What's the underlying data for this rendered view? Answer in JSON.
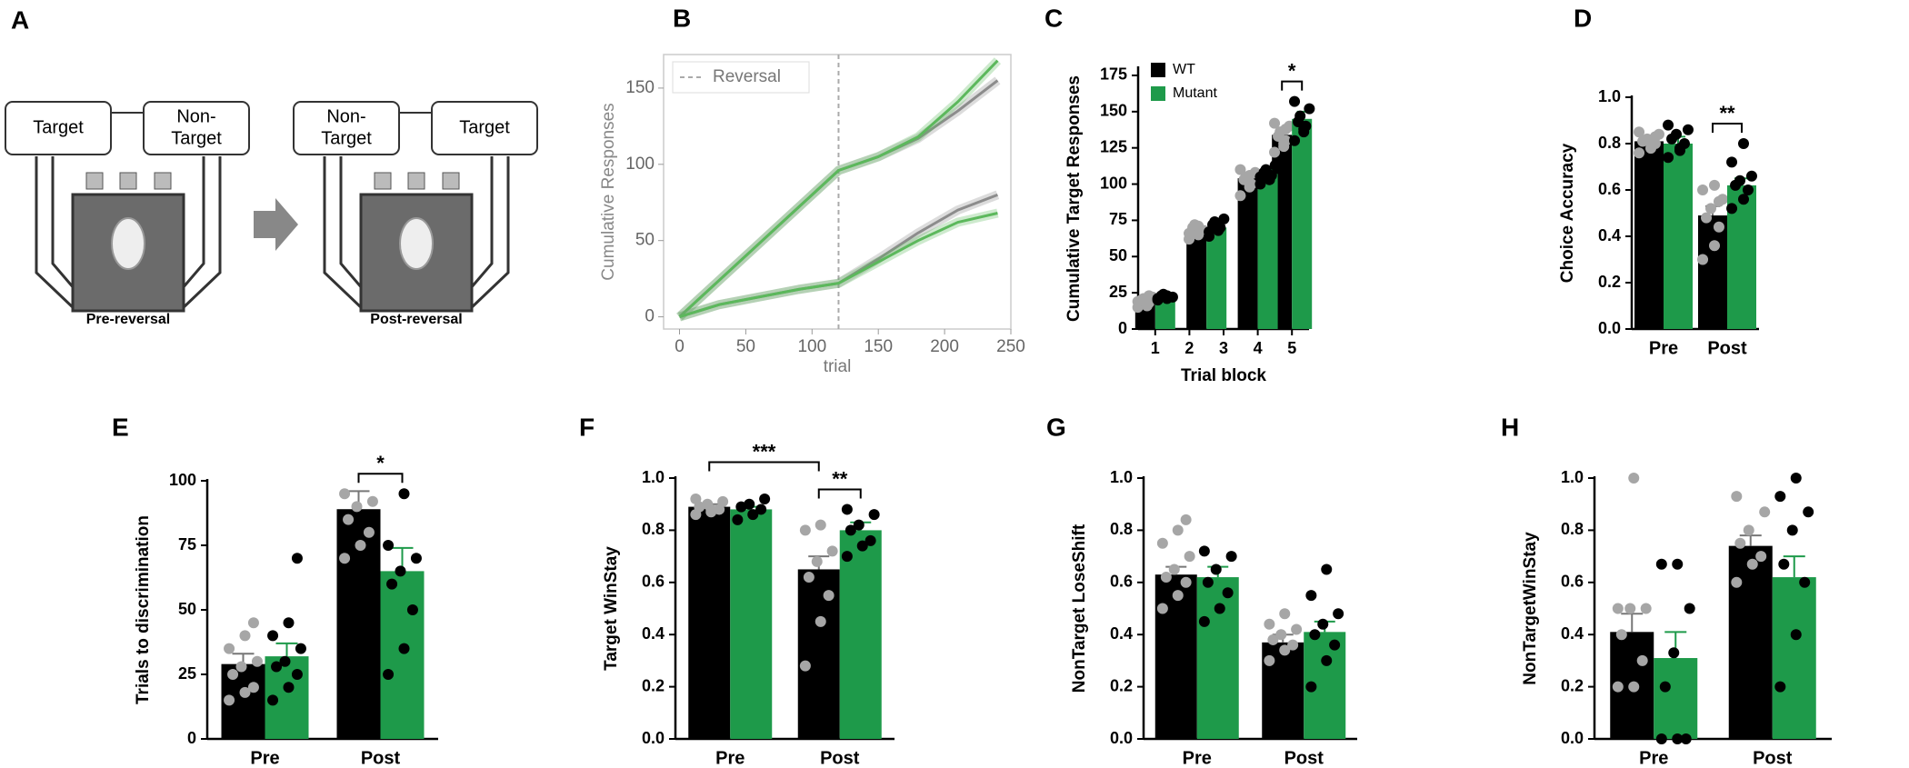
{
  "diagram": {
    "panel": "A",
    "pre": {
      "left": [
        "Target"
      ],
      "right": [
        "Non-",
        "Target"
      ],
      "caption": "Pre-reversal"
    },
    "post": {
      "left": [
        "Non-",
        "Target"
      ],
      "right": [
        "Target"
      ],
      "caption": "Post-reversal"
    }
  },
  "chart_data": [
    {
      "type": "line",
      "panel": "B",
      "xlabel": "trial",
      "ylabel": "Cumulative Responses",
      "x": [
        0,
        30,
        60,
        90,
        120,
        150,
        180,
        210,
        240
      ],
      "series": [
        {
          "color": "#8c8c8c",
          "values": [
            0,
            24,
            48,
            72,
            96,
            105,
            117,
            135,
            155
          ]
        },
        {
          "color": "#5cb85c",
          "values": [
            0,
            24,
            48,
            72,
            96,
            105,
            118,
            141,
            168
          ]
        },
        {
          "color": "#8c8c8c",
          "values": [
            0,
            8,
            13,
            18,
            22,
            38,
            55,
            70,
            80
          ]
        },
        {
          "color": "#5cb85c",
          "values": [
            0,
            8,
            13,
            18,
            22,
            36,
            50,
            62,
            68
          ]
        }
      ],
      "vline": {
        "x": 120,
        "label": "Reversal"
      },
      "xlim": [
        -12,
        250
      ],
      "xticks": [
        0,
        50,
        100,
        150,
        200,
        250
      ],
      "ylim": [
        -8,
        172
      ],
      "yticks": [
        0,
        50,
        100,
        150
      ]
    },
    {
      "type": "bar",
      "panel": "C",
      "xlabel": "Trial block",
      "ylabel": "Cumulative Target Responses",
      "x": [
        1,
        2.5,
        4,
        5
      ],
      "xlim": [
        0.5,
        5.5
      ],
      "xticks": [
        1,
        2,
        3,
        4,
        5
      ],
      "ylim": [
        0,
        180
      ],
      "yticks": [
        0,
        25,
        50,
        75,
        100,
        125,
        150,
        175
      ],
      "legend": "upper left",
      "series": [
        {
          "name": "WT",
          "color": "#000000",
          "point_color": "#a6a6a6",
          "values": [
            19,
            68,
            104,
            134
          ],
          "errors": [
            1,
            2,
            3,
            4
          ],
          "points": [
            [
              15,
              17,
              18,
              20,
              21,
              22,
              19,
              16,
              23
            ],
            [
              62,
              65,
              67,
              70,
              72,
              68,
              66,
              71
            ],
            [
              92,
              98,
              100,
              103,
              105,
              108,
              110,
              106
            ],
            [
              122,
              126,
              130,
              133,
              136,
              140,
              142,
              128,
              138
            ]
          ]
        },
        {
          "name": "Mutant",
          "color": "#1e9a4a",
          "point_color": "#000000",
          "values": [
            22,
            70,
            107,
            145
          ],
          "errors": [
            1,
            2,
            3,
            5
          ],
          "points": [
            [
              20,
              21,
              22,
              23,
              24,
              22,
              21,
              23
            ],
            [
              64,
              68,
              70,
              72,
              74,
              76,
              67
            ],
            [
              100,
              103,
              106,
              108,
              110,
              113,
              105
            ],
            [
              130,
              136,
              140,
              143,
              147,
              152,
              157,
              138
            ]
          ]
        }
      ],
      "significance": [
        {
          "text": "*",
          "from": [
            3,
            0
          ],
          "to": [
            3,
            1
          ]
        }
      ]
    },
    {
      "type": "bar",
      "panel": "D",
      "ylabel": "Choice Accuracy",
      "categories": [
        "Pre",
        "Post"
      ],
      "ylim": [
        0,
        1
      ],
      "yticks": [
        {
          "value": 0,
          "label": "0.0"
        },
        0.2,
        0.4,
        0.6,
        0.8,
        {
          "value": 1,
          "label": "1.0"
        }
      ],
      "series": [
        {
          "color": "#000000",
          "point_color": "#a6a6a6",
          "values": [
            0.81,
            0.49
          ],
          "errors": [
            0.02,
            0.04
          ],
          "points": [
            [
              0.76,
              0.78,
              0.8,
              0.81,
              0.82,
              0.84,
              0.85,
              0.8,
              0.83
            ],
            [
              0.3,
              0.36,
              0.44,
              0.48,
              0.52,
              0.56,
              0.6,
              0.62,
              0.55
            ]
          ]
        },
        {
          "color": "#1e9a4a",
          "point_color": "#000000",
          "values": [
            0.8,
            0.62
          ],
          "errors": [
            0.03,
            0.03
          ],
          "points": [
            [
              0.74,
              0.77,
              0.8,
              0.82,
              0.84,
              0.86,
              0.88,
              0.78
            ],
            [
              0.52,
              0.56,
              0.6,
              0.62,
              0.64,
              0.66,
              0.72,
              0.8
            ]
          ]
        }
      ],
      "significance": [
        {
          "text": "**",
          "from": [
            1,
            0
          ],
          "to": [
            1,
            1
          ]
        }
      ]
    },
    {
      "type": "bar",
      "panel": "E",
      "ylabel": "Trials to discrimination",
      "categories": [
        "Pre",
        "Post"
      ],
      "ylim": [
        0,
        100
      ],
      "yticks": [
        0,
        25,
        50,
        75,
        100
      ],
      "series": [
        {
          "color": "#000000",
          "point_color": "#a6a6a6",
          "values": [
            29,
            89
          ],
          "errors": [
            4,
            7
          ],
          "points": [
            [
              15,
              18,
              20,
              25,
              28,
              30,
              35,
              40,
              45
            ],
            [
              70,
              75,
              80,
              85,
              90,
              92,
              95
            ]
          ]
        },
        {
          "color": "#1e9a4a",
          "point_color": "#000000",
          "values": [
            32,
            65
          ],
          "errors": [
            5,
            9
          ],
          "points": [
            [
              15,
              20,
              25,
              28,
              30,
              35,
              40,
              45,
              70
            ],
            [
              25,
              35,
              50,
              60,
              65,
              70,
              75,
              95
            ]
          ]
        }
      ],
      "significance": [
        {
          "text": "*",
          "from": [
            1,
            0
          ],
          "to": [
            1,
            1
          ]
        }
      ]
    },
    {
      "type": "bar",
      "panel": "F",
      "ylabel": "Target WinStay",
      "categories": [
        "Pre",
        "Post"
      ],
      "ylim": [
        0,
        1
      ],
      "yticks": [
        {
          "value": 0,
          "label": "0.0"
        },
        0.2,
        0.4,
        0.6,
        0.8,
        {
          "value": 1,
          "label": "1.0"
        }
      ],
      "series": [
        {
          "color": "#000000",
          "point_color": "#a6a6a6",
          "values": [
            0.89,
            0.65
          ],
          "errors": [
            0.01,
            0.05
          ],
          "points": [
            [
              0.86,
              0.87,
              0.88,
              0.89,
              0.9,
              0.91,
              0.92,
              0.88
            ],
            [
              0.28,
              0.45,
              0.55,
              0.62,
              0.68,
              0.72,
              0.8,
              0.82
            ]
          ]
        },
        {
          "color": "#1e9a4a",
          "point_color": "#000000",
          "values": [
            0.88,
            0.8
          ],
          "errors": [
            0.01,
            0.03
          ],
          "points": [
            [
              0.84,
              0.86,
              0.88,
              0.89,
              0.9,
              0.92
            ],
            [
              0.7,
              0.74,
              0.76,
              0.8,
              0.82,
              0.86,
              0.88
            ]
          ]
        }
      ],
      "significance": [
        {
          "text": "**",
          "from": [
            1,
            0
          ],
          "to": [
            1,
            1
          ]
        },
        {
          "text": "***",
          "from": [
            0,
            0
          ],
          "to": [
            1,
            0
          ]
        }
      ]
    },
    {
      "type": "bar",
      "panel": "G",
      "ylabel": "NonTarget LoseShift",
      "categories": [
        "Pre",
        "Post"
      ],
      "ylim": [
        0,
        1
      ],
      "yticks": [
        {
          "value": 0,
          "label": "0.0"
        },
        0.2,
        0.4,
        0.6,
        0.8,
        {
          "value": 1,
          "label": "1.0"
        }
      ],
      "series": [
        {
          "color": "#000000",
          "point_color": "#a6a6a6",
          "values": [
            0.63,
            0.37
          ],
          "errors": [
            0.03,
            0.03
          ],
          "points": [
            [
              0.5,
              0.55,
              0.6,
              0.62,
              0.65,
              0.7,
              0.75,
              0.8,
              0.84
            ],
            [
              0.3,
              0.34,
              0.36,
              0.38,
              0.4,
              0.42,
              0.44,
              0.48
            ]
          ]
        },
        {
          "color": "#1e9a4a",
          "point_color": "#000000",
          "values": [
            0.62,
            0.41
          ],
          "errors": [
            0.04,
            0.04
          ],
          "points": [
            [
              0.45,
              0.5,
              0.56,
              0.6,
              0.65,
              0.7,
              0.72
            ],
            [
              0.2,
              0.3,
              0.36,
              0.4,
              0.44,
              0.48,
              0.55,
              0.65
            ]
          ]
        }
      ],
      "significance": []
    },
    {
      "type": "bar",
      "panel": "H",
      "ylabel": "NonTargetWinStay",
      "categories": [
        "Pre",
        "Post"
      ],
      "ylim": [
        0,
        1
      ],
      "yticks": [
        {
          "value": 0,
          "label": "0.0"
        },
        0.2,
        0.4,
        0.6,
        0.8,
        {
          "value": 1,
          "label": "1.0"
        }
      ],
      "series": [
        {
          "color": "#000000",
          "point_color": "#a6a6a6",
          "values": [
            0.41,
            0.74
          ],
          "errors": [
            0.07,
            0.04
          ],
          "points": [
            [
              0.2,
              0.2,
              0.3,
              0.4,
              0.5,
              0.5,
              0.5,
              1.0
            ],
            [
              0.6,
              0.67,
              0.7,
              0.75,
              0.8,
              0.87,
              0.93
            ]
          ]
        },
        {
          "color": "#1e9a4a",
          "point_color": "#000000",
          "values": [
            0.31,
            0.62
          ],
          "errors": [
            0.1,
            0.08
          ],
          "points": [
            [
              0,
              0,
              0,
              0.2,
              0.33,
              0.5,
              0.67,
              0.67
            ],
            [
              0.2,
              0.4,
              0.6,
              0.67,
              0.8,
              0.87,
              0.93,
              1.0
            ]
          ]
        }
      ],
      "significance": []
    }
  ]
}
